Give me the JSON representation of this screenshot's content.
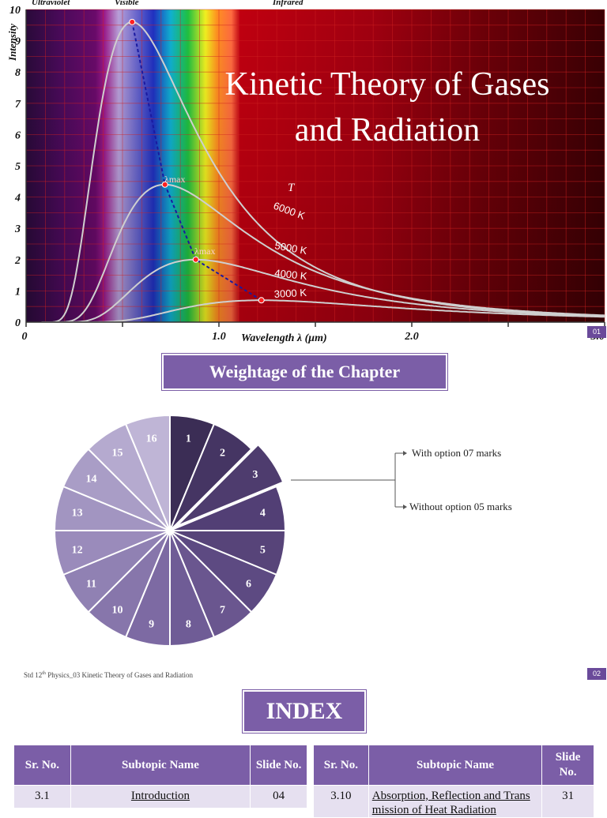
{
  "slide1": {
    "title_line1": "Kinetic Theory of Gases",
    "title_line2": "and Radiation",
    "slide_number": "01",
    "spectrum_labels": [
      "Ultraviolet",
      "Visible",
      "Infrared"
    ],
    "y_axis_label": "Intensity",
    "x_axis_label": "Wavelength λ (μm)",
    "y_ticks": [
      "0",
      "1",
      "2",
      "3",
      "4",
      "5",
      "6",
      "7",
      "8",
      "9",
      "10"
    ],
    "x_ticks": [
      "0",
      "1.0",
      "2.0",
      "3.0"
    ],
    "lambda_max_label": "λmax",
    "temperature_symbol": "T",
    "curve_labels": [
      "6000 K",
      "5000 K",
      "4000 K",
      "3000 K"
    ]
  },
  "chart_data": {
    "type": "line",
    "xlabel": "Wavelength λ (μm)",
    "ylabel": "Intensity",
    "xlim": [
      0,
      3.0
    ],
    "ylim": [
      0,
      10
    ],
    "series": [
      {
        "name": "6000 K",
        "peak_x": 0.55,
        "peak_y": 9.6
      },
      {
        "name": "5000 K",
        "peak_x": 0.72,
        "peak_y": 4.4
      },
      {
        "name": "4000 K",
        "peak_x": 0.88,
        "peak_y": 2.0
      },
      {
        "name": "3000 K",
        "peak_x": 1.22,
        "peak_y": 0.7
      }
    ]
  },
  "slide2": {
    "banner": "Weightage of  the Chapter",
    "pie_labels": [
      "1",
      "2",
      "3",
      "4",
      "5",
      "6",
      "7",
      "8",
      "9",
      "10",
      "11",
      "12",
      "13",
      "14",
      "15",
      "16"
    ],
    "pie_colors": [
      "#3b2d55",
      "#453563",
      "#4e3c6e",
      "#523f75",
      "#574479",
      "#5d4a82",
      "#6a568f",
      "#6f5c96",
      "#7d6aa3",
      "#8776ab",
      "#9081b3",
      "#9a8bbb",
      "#a295c1",
      "#a99dc6",
      "#b5aacf",
      "#bfb5d6"
    ],
    "callout_with": "With option 07 marks",
    "callout_without": "Without option 05 marks",
    "footer_pre": "Std 12",
    "footer_sup": "th",
    "footer_post": " Physics_03 Kinetic Theory of Gases and Radiation",
    "slide_number": "02"
  },
  "slide3": {
    "banner": "INDEX",
    "headers": [
      "Sr. No.",
      "Subtopic Name",
      "Slide No."
    ],
    "left_rows": [
      {
        "sr": "3.1",
        "name": "Introduction",
        "slide": "04"
      }
    ],
    "right_rows": [
      {
        "sr": "3.10",
        "name": "Absorption, Reflection and Transmission of Heat Radiation",
        "slide": "31"
      }
    ]
  }
}
